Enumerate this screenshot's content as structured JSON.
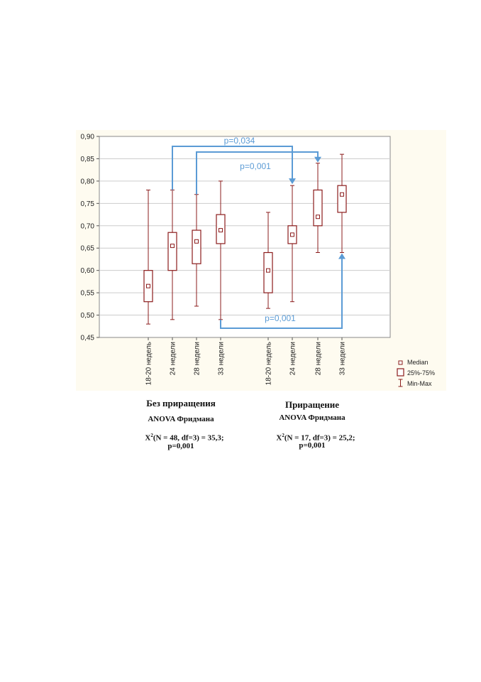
{
  "chart_data": {
    "type": "box",
    "title": "",
    "xlabel": "",
    "ylabel": "",
    "ylim": [
      0.45,
      0.9
    ],
    "y_ticks": [
      "0,45",
      "0,50",
      "0,55",
      "0,60",
      "0,65",
      "0,70",
      "0,75",
      "0,80",
      "0,85",
      "0,90"
    ],
    "grid": true,
    "categories": [
      "18-20 недель",
      "24 недели",
      "28 недели",
      "33 недели",
      "18-20 недель",
      "24 недели",
      "28 недели",
      "33 недели"
    ],
    "groups": [
      {
        "name": "Без приращения",
        "boxes": [
          {
            "category": "18-20 недель",
            "min": 0.48,
            "q1": 0.53,
            "median": 0.565,
            "q3": 0.6,
            "max": 0.78
          },
          {
            "category": "24 недели",
            "min": 0.49,
            "q1": 0.6,
            "median": 0.655,
            "q3": 0.685,
            "max": 0.78
          },
          {
            "category": "28 недели",
            "min": 0.52,
            "q1": 0.615,
            "median": 0.665,
            "q3": 0.69,
            "max": 0.77
          },
          {
            "category": "33 недели",
            "min": 0.49,
            "q1": 0.66,
            "median": 0.69,
            "q3": 0.725,
            "max": 0.8
          }
        ]
      },
      {
        "name": "Приращение",
        "boxes": [
          {
            "category": "18-20 недель",
            "min": 0.515,
            "q1": 0.55,
            "median": 0.6,
            "q3": 0.64,
            "max": 0.73
          },
          {
            "category": "24 недели",
            "min": 0.53,
            "q1": 0.66,
            "median": 0.68,
            "q3": 0.7,
            "max": 0.79
          },
          {
            "category": "28 недели",
            "min": 0.64,
            "q1": 0.7,
            "median": 0.72,
            "q3": 0.78,
            "max": 0.84
          },
          {
            "category": "33 недели",
            "min": 0.64,
            "q1": 0.73,
            "median": 0.77,
            "q3": 0.79,
            "max": 0.86
          }
        ]
      }
    ],
    "legend": {
      "placement": "bottom-right",
      "items": [
        "Median",
        "25%-75%",
        "Min-Max"
      ]
    },
    "annotations": [
      {
        "text": "p=0,034",
        "from_box": 1,
        "to_box": 5,
        "y": 0.88
      },
      {
        "text": "p=0,001",
        "from_box": 2,
        "to_box": 6,
        "y": 0.865
      },
      {
        "text": "p=0,001",
        "from_box": 3,
        "to_box": 7,
        "y": 0.45
      }
    ],
    "colors": {
      "box": "#8b1c1c",
      "arrow": "#5b9bd5",
      "plot_bg": "#ffffff",
      "figure_bg": "#fefbf0",
      "grid": "#cccccc"
    }
  },
  "captions": {
    "left": {
      "group": "Без приращения",
      "test": "ANOVA Фридмана",
      "stat_prefix": "X",
      "stat_sup": "2",
      "stat": "(N = 48, df=3) = 35,3;",
      "p": "p=0,001"
    },
    "right": {
      "group": "Приращение",
      "test": "ANOVA Фридмана",
      "stat_prefix": "X",
      "stat_sup": "2",
      "stat": "(N = 17, df=3) = 25,2;",
      "p": "p=0,001"
    }
  }
}
